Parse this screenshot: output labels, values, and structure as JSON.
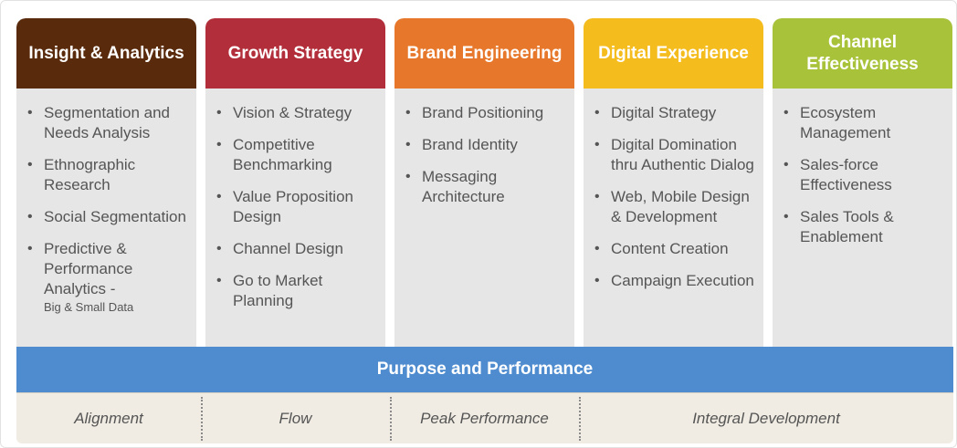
{
  "columns": [
    {
      "title": "Insight & Analytics",
      "color": "#5a2a0c",
      "items": [
        {
          "text": "Segmentation and Needs Analysis"
        },
        {
          "text": "Ethnographic Research"
        },
        {
          "text": "Social Segmentation"
        },
        {
          "text": "Predictive & Performance Analytics -",
          "sub": "Big & Small Data"
        }
      ]
    },
    {
      "title": "Growth Strategy",
      "color": "#b22e3a",
      "items": [
        {
          "text": "Vision & Strategy"
        },
        {
          "text": "Competitive Benchmarking"
        },
        {
          "text": "Value Proposition Design"
        },
        {
          "text": "Channel Design"
        },
        {
          "text": "Go to Market Planning"
        }
      ]
    },
    {
      "title": "Brand Engineering",
      "color": "#e7782b",
      "items": [
        {
          "text": "Brand Positioning"
        },
        {
          "text": "Brand Identity"
        },
        {
          "text": "Messaging Architecture"
        }
      ]
    },
    {
      "title": "Digital Experience",
      "color": "#f4bc1c",
      "items": [
        {
          "text": "Digital Strategy"
        },
        {
          "text": "Digital Domination thru Authentic Dialog"
        },
        {
          "text": "Web, Mobile Design & Development"
        },
        {
          "text": "Content Creation"
        },
        {
          "text": "Campaign Execution"
        }
      ]
    },
    {
      "title": "Channel Effectiveness",
      "color": "#a8c33a",
      "items": [
        {
          "text": "Ecosystem Management"
        },
        {
          "text": "Sales-force Effectiveness"
        },
        {
          "text": "Sales Tools & Enablement"
        }
      ]
    }
  ],
  "band": {
    "title": "Purpose and Performance",
    "color": "#4f8ccf"
  },
  "footer": {
    "cells": [
      "Alignment",
      "Flow",
      "Peak Performance",
      "Integral Development"
    ]
  }
}
